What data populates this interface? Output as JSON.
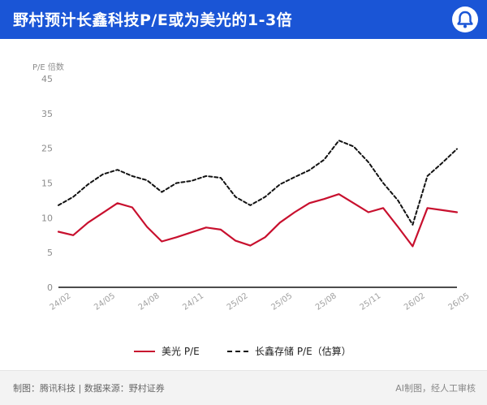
{
  "header": {
    "title": "野村预计长鑫科技P/E或为美光的1-3倍"
  },
  "colors": {
    "brand": "#1a55d6",
    "micron": "#c8102e",
    "cxmt": "#111111"
  },
  "chart_data": {
    "type": "line",
    "ylabel": "P/E 倍数",
    "ylim": [
      0,
      45
    ],
    "yticks": [
      0,
      5,
      10,
      15,
      25,
      35,
      45
    ],
    "categories": [
      "24/02",
      "24/03",
      "24/04",
      "24/05",
      "24/06",
      "24/07",
      "24/08",
      "24/09",
      "24/10",
      "24/11",
      "24/12",
      "25/01",
      "25/02",
      "25/03",
      "25/04",
      "25/05",
      "25/06",
      "25/07",
      "25/08",
      "25/09",
      "25/10",
      "25/11",
      "25/12",
      "26/01",
      "26/02",
      "26/03",
      "26/04",
      "26/05"
    ],
    "x_tick_labels": [
      "24/02",
      "24/05",
      "24/08",
      "24/11",
      "25/02",
      "25/05",
      "25/08",
      "25/11",
      "26/02",
      "26/05"
    ],
    "series": [
      {
        "name": "美光 P/E",
        "style": "solid",
        "color": "#c8102e",
        "values": [
          8.0,
          7.5,
          9.3,
          10.7,
          12.1,
          11.5,
          8.7,
          6.6,
          7.2,
          7.9,
          8.6,
          8.3,
          6.7,
          6.0,
          7.2,
          9.3,
          10.8,
          12.1,
          12.7,
          13.4,
          12.1,
          10.8,
          11.4,
          8.7,
          5.9,
          11.4,
          11.1,
          10.8
        ]
      },
      {
        "name": "长鑫存储 P/E（估算）",
        "style": "dashed",
        "color": "#111111",
        "values": [
          11.8,
          13.0,
          14.8,
          17.5,
          18.8,
          17.0,
          15.8,
          13.7,
          15.0,
          15.6,
          17.0,
          16.5,
          13.0,
          11.8,
          13.0,
          14.8,
          16.7,
          18.7,
          21.7,
          27.2,
          25.5,
          21.0,
          15.0,
          12.5,
          9.0,
          17.0,
          20.8,
          24.8
        ]
      }
    ],
    "legend_position": "bottom",
    "grid": false
  },
  "footer": {
    "left": "制图：腾讯科技 | 数据来源：野村证券",
    "right": "AI制图，经人工审核"
  }
}
